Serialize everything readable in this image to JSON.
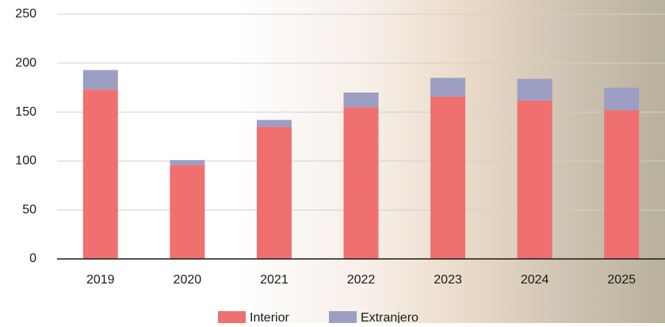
{
  "chart_data": {
    "type": "stacked-bar",
    "categories": [
      "2019",
      "2020",
      "2021",
      "2022",
      "2023",
      "2024",
      "2025"
    ],
    "series": [
      {
        "name": "Interior",
        "color": "#f07070",
        "values": [
          173,
          96,
          135,
          155,
          166,
          162,
          152
        ]
      },
      {
        "name": "Extranjero",
        "color": "#9c9ec4",
        "values": [
          20,
          5,
          7,
          15,
          19,
          22,
          23
        ]
      }
    ],
    "ylim": [
      0,
      250
    ],
    "yticks": [
      0,
      50,
      100,
      150,
      200,
      250
    ],
    "grid": true,
    "legend": "bottom"
  }
}
